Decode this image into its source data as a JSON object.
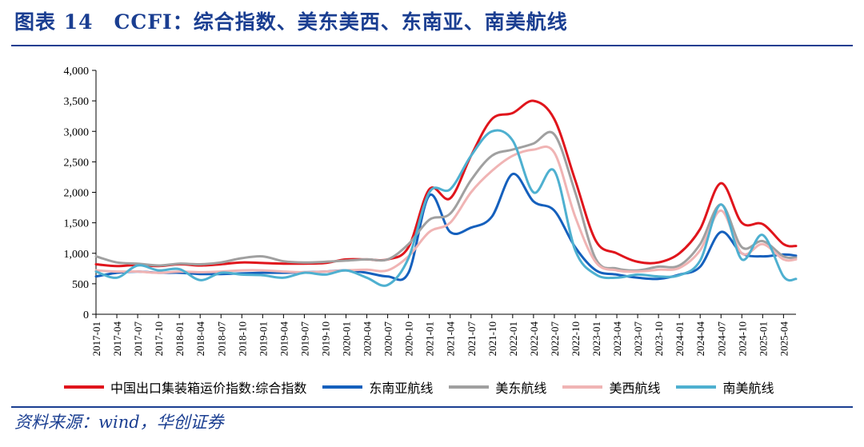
{
  "header": {
    "title": "图表 14　CCFI：综合指数、美东美西、东南亚、南美航线"
  },
  "footer": {
    "source": "资料来源：wind，华创证券"
  },
  "chart_data": {
    "type": "line",
    "ylim": [
      0,
      4000
    ],
    "yticks": [
      "0",
      "500",
      "1,000",
      "1,500",
      "2,000",
      "2,500",
      "3,000",
      "3,500",
      "4,000"
    ],
    "ytick_values": [
      0,
      500,
      1000,
      1500,
      2000,
      2500,
      3000,
      3500,
      4000
    ],
    "xticks": [
      "2017-01",
      "2017-04",
      "2017-07",
      "2017-10",
      "2018-01",
      "2018-04",
      "2018-07",
      "2018-10",
      "2019-01",
      "2019-04",
      "2019-07",
      "2019-10",
      "2020-01",
      "2020-04",
      "2020-07",
      "2020-10",
      "2021-01",
      "2021-04",
      "2021-07",
      "2021-10",
      "2022-01",
      "2022-04",
      "2022-07",
      "2022-10",
      "2023-01",
      "2023-04",
      "2023-07",
      "2023-10",
      "2024-01",
      "2024-04",
      "2024-07",
      "2024-10",
      "2025-01",
      "2025-04"
    ],
    "x": [
      0,
      1,
      2,
      3,
      4,
      5,
      6,
      7,
      8,
      9,
      10,
      11,
      12,
      13,
      14,
      15,
      16,
      17,
      18,
      19,
      20,
      21,
      22,
      23,
      24,
      25,
      26,
      27,
      28,
      29,
      30,
      31,
      32,
      33,
      33.6
    ],
    "series": [
      {
        "name": "中国出口集装箱运价指数:综合指数",
        "color": "#e0151c",
        "values": [
          820,
          790,
          810,
          790,
          820,
          800,
          820,
          850,
          840,
          830,
          830,
          840,
          900,
          900,
          900,
          1100,
          2050,
          1900,
          2600,
          3200,
          3300,
          3500,
          3200,
          2200,
          1200,
          1000,
          860,
          850,
          1000,
          1400,
          2150,
          1500,
          1480,
          1150,
          1120
        ]
      },
      {
        "name": "东南亚航线",
        "color": "#1560bd",
        "values": [
          620,
          680,
          700,
          680,
          680,
          660,
          660,
          670,
          680,
          680,
          690,
          700,
          720,
          680,
          620,
          680,
          1950,
          1350,
          1420,
          1600,
          2300,
          1850,
          1700,
          1100,
          720,
          650,
          600,
          580,
          650,
          780,
          1350,
          1000,
          950,
          980,
          960
        ]
      },
      {
        "name": "美东航线",
        "color": "#a0a0a0",
        "values": [
          950,
          850,
          830,
          800,
          830,
          820,
          850,
          920,
          950,
          870,
          850,
          860,
          880,
          900,
          900,
          1150,
          1550,
          1650,
          2200,
          2600,
          2700,
          2800,
          2950,
          2000,
          900,
          750,
          720,
          780,
          800,
          1150,
          1800,
          1100,
          1200,
          950,
          930
        ]
      },
      {
        "name": "美西航线",
        "color": "#f0b4b4",
        "values": [
          720,
          700,
          700,
          680,
          700,
          690,
          700,
          720,
          720,
          700,
          690,
          700,
          720,
          730,
          720,
          950,
          1350,
          1500,
          2000,
          2350,
          2600,
          2700,
          2650,
          1600,
          850,
          720,
          700,
          730,
          760,
          1050,
          1700,
          1000,
          1150,
          900,
          900
        ]
      },
      {
        "name": "南美航线",
        "color": "#4eb0d0",
        "values": [
          700,
          600,
          800,
          720,
          740,
          560,
          680,
          650,
          640,
          600,
          680,
          650,
          720,
          600,
          480,
          920,
          2000,
          2050,
          2600,
          3000,
          2850,
          2000,
          2350,
          1050,
          650,
          600,
          650,
          620,
          640,
          880,
          1800,
          900,
          1300,
          620,
          580
        ]
      }
    ]
  }
}
